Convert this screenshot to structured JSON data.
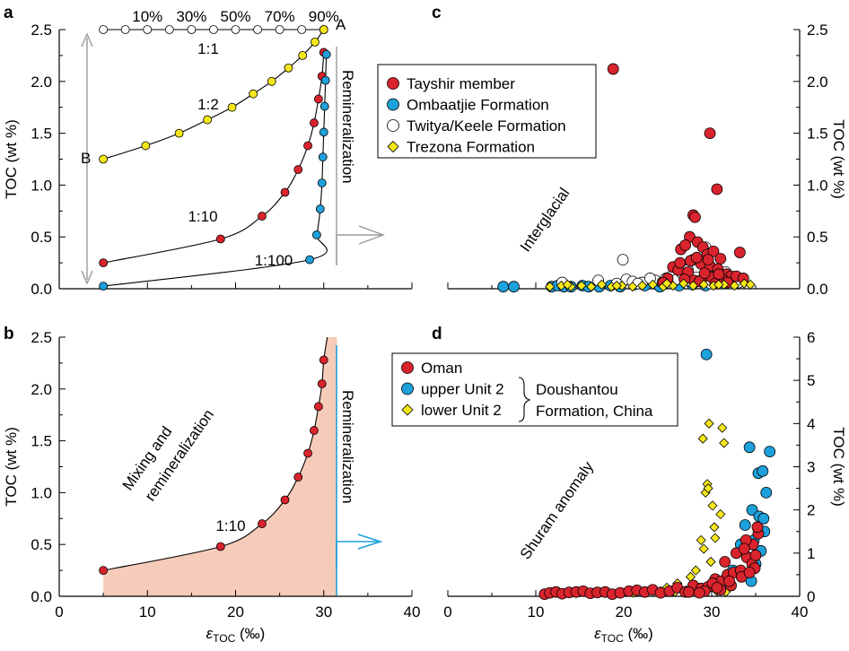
{
  "chart_data": [
    {
      "panel": "a",
      "type": "line",
      "ylabel": "TOC (wt %)",
      "xlim": [
        0,
        40
      ],
      "ylim": [
        0,
        2.5
      ],
      "yticks": [
        "0.0",
        "0.5",
        "1.0",
        "1.5",
        "2.0",
        "2.5"
      ],
      "top_percent_labels": [
        "10%",
        "30%",
        "50%",
        "70%",
        "90%"
      ],
      "end_labels": [
        "A",
        "B"
      ],
      "vertical_label": "Remineralization",
      "series": [
        {
          "name": "1:1",
          "color": "#ffffff",
          "x": [
            5,
            7.5,
            10,
            12.5,
            15,
            17.5,
            20,
            22.5,
            25,
            27.5,
            30
          ],
          "y": [
            2.5,
            2.5,
            2.5,
            2.5,
            2.5,
            2.5,
            2.5,
            2.5,
            2.5,
            2.5,
            2.5
          ]
        },
        {
          "name": "1:2",
          "color": "#f5e71a",
          "x": [
            5,
            9.8,
            13.6,
            16.8,
            19.6,
            22,
            24.1,
            26,
            27.6,
            29,
            30
          ],
          "y": [
            1.25,
            1.38,
            1.5,
            1.63,
            1.75,
            1.88,
            2.0,
            2.13,
            2.25,
            2.38,
            2.5
          ]
        },
        {
          "name": "1:10",
          "color": "#d9232d",
          "x": [
            5,
            18.3,
            23,
            25.6,
            27.1,
            28.2,
            28.9,
            29.4,
            29.8,
            30
          ],
          "y": [
            0.25,
            0.48,
            0.7,
            0.93,
            1.15,
            1.38,
            1.6,
            1.83,
            2.05,
            2.28
          ]
        },
        {
          "name": "1:100",
          "color": "#1ea0db",
          "x": [
            5,
            28.4,
            29.2,
            29.6,
            29.8,
            29.9,
            30.0,
            30.1,
            30.2,
            30.3
          ],
          "y": [
            0.025,
            0.28,
            0.52,
            0.77,
            1.02,
            1.27,
            1.51,
            1.76,
            2.01,
            2.26
          ]
        }
      ]
    },
    {
      "panel": "b",
      "type": "area",
      "xlabel": "εTOC (‰)",
      "ylabel": "TOC (wt %)",
      "xlim": [
        0,
        40
      ],
      "ylim": [
        0,
        2.5
      ],
      "xticks": [
        "0",
        "10",
        "20",
        "30",
        "40"
      ],
      "yticks": [
        "0.0",
        "0.5",
        "1.0",
        "1.5",
        "2.0",
        "2.5"
      ],
      "region_label_line1": "Mixing and",
      "region_label_line2": "remineralization",
      "vertical_label": "Remineralization",
      "curve_label": "1:10",
      "series": [
        {
          "name": "1:10",
          "color": "#d9232d",
          "x": [
            5,
            18.3,
            23,
            25.6,
            27.1,
            28.2,
            28.9,
            29.4,
            29.8,
            30
          ],
          "y": [
            0.25,
            0.48,
            0.7,
            0.93,
            1.15,
            1.38,
            1.6,
            1.83,
            2.05,
            2.28
          ]
        }
      ]
    },
    {
      "panel": "c",
      "type": "scatter",
      "ylabel": "TOC (wt %)",
      "xlim": [
        0,
        40
      ],
      "ylim": [
        0,
        2.5
      ],
      "yticks": [
        "0.0",
        "0.5",
        "1.0",
        "1.5",
        "2.0",
        "2.5"
      ],
      "region_label": "Interglacial",
      "legend": [
        {
          "name": "Tayshir member",
          "color": "#d9232d",
          "shape": "circle"
        },
        {
          "name": "Ombaatjie Formation",
          "color": "#1ea0db",
          "shape": "circle"
        },
        {
          "name": "Twitya/Keele Formation",
          "color": "#ffffff",
          "shape": "circle"
        },
        {
          "name": "Trezona Formation",
          "color": "#f5e71a",
          "shape": "diamond"
        }
      ],
      "series": [
        {
          "name": "Tayshir member",
          "x": [
            18.8,
            29.8,
            30.6,
            27.9,
            28.1,
            27.5,
            26.5,
            27.0,
            28.4,
            29.0,
            29.5,
            30.2,
            31.0,
            33.2,
            25.6,
            26.2,
            27.3,
            28.8,
            29.8,
            30.7,
            31.7,
            32.2,
            25.0,
            28.0,
            29.2,
            24.5,
            26.9,
            28.6,
            30.0,
            31.4,
            32.8,
            33.6,
            27.6,
            29.2,
            30.4,
            31.8,
            28.3,
            26.4,
            30.8,
            29.6
          ],
          "y": [
            2.12,
            1.5,
            0.96,
            0.71,
            0.69,
            0.5,
            0.38,
            0.42,
            0.45,
            0.4,
            0.33,
            0.36,
            0.29,
            0.35,
            0.21,
            0.18,
            0.16,
            0.24,
            0.22,
            0.19,
            0.14,
            0.12,
            0.1,
            0.08,
            0.12,
            0.06,
            0.09,
            0.07,
            0.11,
            0.08,
            0.12,
            0.1,
            0.27,
            0.15,
            0.05,
            0.06,
            0.3,
            0.25,
            0.14,
            0.28
          ]
        },
        {
          "name": "Ombaatjie Formation",
          "x": [
            6.3,
            7.5,
            11.8,
            12.5,
            13.2,
            14.0,
            15.3,
            16.0,
            17.2,
            18.5,
            19.6,
            21.2,
            22.4,
            24.1,
            26.3,
            27.8,
            29.3,
            31.2
          ],
          "y": [
            0.02,
            0.02,
            0.02,
            0.03,
            0.02,
            0.02,
            0.03,
            0.02,
            0.02,
            0.03,
            0.02,
            0.04,
            0.03,
            0.02,
            0.03,
            0.04,
            0.03,
            0.05
          ]
        },
        {
          "name": "Twitya/Keele Formation",
          "x": [
            13.0,
            17.1,
            19.2,
            20.3,
            21.0,
            22.1,
            23.6,
            24.4,
            24.8,
            25.4,
            26.0,
            26.6,
            27.3,
            27.9,
            28.3,
            28.8,
            29.3,
            29.6,
            30.0,
            30.6,
            31.6,
            32.2,
            33.1,
            27.6,
            29.9,
            19.9,
            21.6,
            23.0
          ],
          "y": [
            0.06,
            0.08,
            0.05,
            0.09,
            0.07,
            0.06,
            0.08,
            0.06,
            0.1,
            0.12,
            0.09,
            0.15,
            0.18,
            0.28,
            0.11,
            0.08,
            0.4,
            0.34,
            0.2,
            0.14,
            0.16,
            0.09,
            0.06,
            0.07,
            0.05,
            0.28,
            0.05,
            0.1
          ]
        },
        {
          "name": "Trezona Formation",
          "x": [
            11.6,
            12.9,
            14.0,
            15.2,
            16.3,
            17.5,
            18.6,
            19.8,
            21.0,
            22.1,
            23.3,
            24.5,
            25.6,
            26.8,
            27.9,
            29.1,
            30.2,
            31.4,
            32.6,
            33.7,
            34.4,
            13.6,
            19.2,
            24.9,
            30.8
          ],
          "y": [
            0.02,
            0.03,
            0.02,
            0.03,
            0.02,
            0.04,
            0.02,
            0.03,
            0.02,
            0.03,
            0.04,
            0.02,
            0.03,
            0.05,
            0.03,
            0.04,
            0.03,
            0.04,
            0.03,
            0.05,
            0.04,
            0.04,
            0.03,
            0.05,
            0.04
          ]
        }
      ]
    },
    {
      "panel": "d",
      "type": "scatter",
      "xlabel": "εTOC (‰)",
      "ylabel": "TOC (wt %)",
      "xlim": [
        0,
        40
      ],
      "ylim": [
        0,
        6
      ],
      "xticks": [
        "0",
        "10",
        "20",
        "30",
        "40"
      ],
      "yticks": [
        "0",
        "1",
        "2",
        "3",
        "4",
        "5",
        "6"
      ],
      "region_label": "Shuram anomaly",
      "legend": [
        {
          "name": "Oman",
          "color": "#d9232d",
          "shape": "circle"
        },
        {
          "name": "upper Unit 2",
          "color": "#1ea0db",
          "shape": "circle"
        },
        {
          "name": "lower Unit 2",
          "color": "#f5e71a",
          "shape": "diamond"
        }
      ],
      "legend_group_line1": "Doushantou",
      "legend_group_line2": "Formation, China",
      "series": [
        {
          "name": "Oman",
          "x": [
            11.0,
            11.6,
            12.3,
            13.0,
            13.8,
            14.6,
            15.4,
            16.2,
            17.0,
            17.9,
            18.7,
            19.6,
            20.6,
            21.5,
            22.4,
            23.3,
            24.2,
            25.2,
            26.1,
            27.0,
            27.9,
            28.8,
            29.6,
            30.4,
            31.1,
            31.8,
            32.5,
            33.3,
            34.0,
            34.7,
            35.3,
            30.1,
            31.5,
            32.8,
            33.9,
            34.6,
            35.2,
            32.2,
            33.4,
            34.9,
            31.0,
            29.2,
            30.6,
            32.0,
            33.7,
            34.3,
            35.0,
            27.4,
            28.6
          ],
          "y": [
            0.05,
            0.08,
            0.1,
            0.06,
            0.09,
            0.1,
            0.12,
            0.07,
            0.09,
            0.1,
            0.05,
            0.08,
            0.12,
            0.14,
            0.1,
            0.15,
            0.08,
            0.12,
            0.2,
            0.1,
            0.25,
            0.18,
            0.22,
            0.4,
            0.35,
            0.5,
            0.55,
            0.6,
            0.9,
            1.2,
            1.45,
            0.3,
            0.8,
            1.0,
            1.3,
            0.75,
            1.6,
            0.25,
            0.45,
            0.65,
            0.15,
            0.12,
            0.2,
            0.35,
            1.1,
            0.55,
            0.95,
            0.1,
            0.08
          ]
        },
        {
          "name": "upper Unit 2",
          "x": [
            29.4,
            34.3,
            36.6,
            35.3,
            35.8,
            36.2,
            34.6,
            35.4,
            36.0,
            33.8,
            34.8,
            35.6,
            33.3,
            34.1,
            35.0,
            32.4,
            31.6,
            30.2,
            33.0,
            35.9,
            34.5
          ],
          "y": [
            5.6,
            3.45,
            3.35,
            2.85,
            2.9,
            2.4,
            2.0,
            1.85,
            1.5,
            1.65,
            1.3,
            1.05,
            1.2,
            0.9,
            0.75,
            0.6,
            0.4,
            0.25,
            0.55,
            1.8,
            0.35
          ]
        },
        {
          "name": "lower Unit 2",
          "x": [
            29.7,
            31.2,
            29.0,
            31.4,
            29.5,
            29.3,
            30.1,
            31.0,
            29.6,
            30.3,
            28.8,
            29.1,
            30.4,
            29.9,
            28.2,
            27.6,
            26.1,
            24.9,
            23.6,
            22.2,
            21.1,
            24.2,
            25.8,
            27.1,
            28.5,
            30.6,
            29.2,
            31.6
          ],
          "y": [
            4.0,
            3.9,
            3.65,
            3.55,
            2.6,
            2.4,
            2.1,
            1.9,
            2.5,
            1.6,
            1.3,
            1.1,
            1.35,
            0.8,
            0.6,
            0.45,
            0.3,
            0.2,
            0.15,
            0.1,
            0.08,
            0.12,
            0.1,
            0.14,
            0.2,
            0.12,
            0.16,
            0.1
          ]
        }
      ]
    }
  ],
  "shared_xlabel": "εTOC (‰)",
  "panel_letters": [
    "a",
    "b",
    "c",
    "d"
  ]
}
